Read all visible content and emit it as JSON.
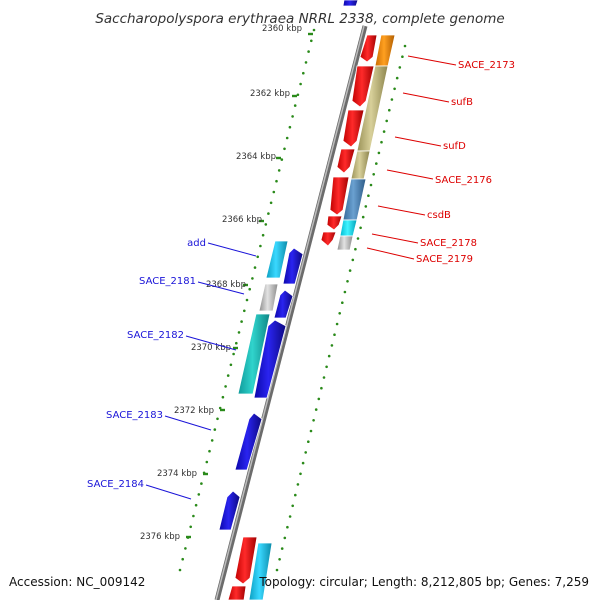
{
  "title": "Saccharopolyspora erythraea NRRL 2338, complete genome",
  "accession": "Accession: NC_009142",
  "topology": "Topology: circular; Length: 8,212,805 bp; Genes: 7,259",
  "ticks": [
    "2360 kbp",
    "2362 kbp",
    "2364 kbp",
    "2366 kbp",
    "2368 kbp",
    "2370 kbp",
    "2372 kbp",
    "2374 kbp",
    "2376 kbp"
  ],
  "labels": {
    "right": [
      "SACE_2173",
      "sufB",
      "sufD",
      "SACE_2176",
      "csdB",
      "SACE_2178",
      "SACE_2179"
    ],
    "left": [
      "add",
      "SACE_2181",
      "SACE_2182",
      "SACE_2183",
      "SACE_2184"
    ]
  },
  "colors": {
    "forward_gene": "#ee1111",
    "reverse_gene": "#1a14d8",
    "forward_label": "#dd0000",
    "reverse_label": "#1a14d8",
    "backbone": "#8a8a8a",
    "tick_dots": "#2a8a1a"
  }
}
